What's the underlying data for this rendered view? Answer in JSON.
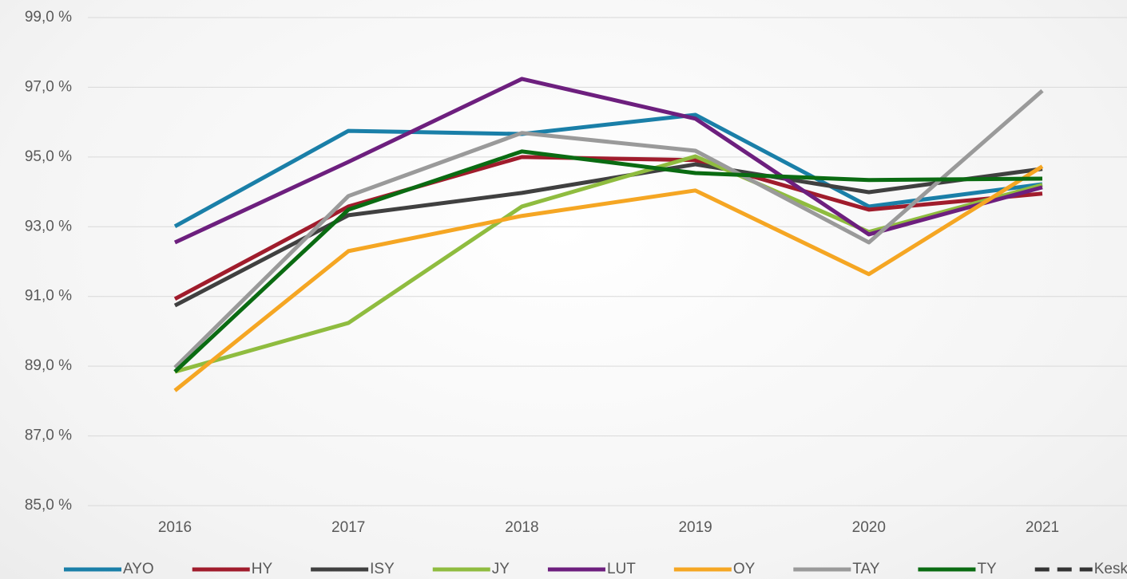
{
  "chart_data": {
    "type": "line",
    "categories": [
      "2016",
      "2017",
      "2018",
      "2019",
      "2020",
      "2021"
    ],
    "ylim": [
      85,
      99
    ],
    "yticks": [
      {
        "value": 85,
        "label": "85,0 %"
      },
      {
        "value": 87,
        "label": "87,0 %"
      },
      {
        "value": 89,
        "label": "89,0 %"
      },
      {
        "value": 91,
        "label": "91,0 %"
      },
      {
        "value": 93,
        "label": "93,0 %"
      },
      {
        "value": 95,
        "label": "95,0 %"
      },
      {
        "value": 97,
        "label": "97,0 %"
      },
      {
        "value": 99,
        "label": "99,0 %"
      }
    ],
    "grid": true,
    "legend": "bottom",
    "series": [
      {
        "name": "AYO",
        "color": "#1a7fa8",
        "values": [
          93.01,
          95.75,
          95.66,
          96.21,
          93.58,
          94.22
        ]
      },
      {
        "name": "HY",
        "color": "#a01c2c",
        "values": [
          90.93,
          93.58,
          95.0,
          94.91,
          93.49,
          93.95
        ]
      },
      {
        "name": "ISY",
        "color": "#404040",
        "values": [
          90.74,
          93.33,
          93.97,
          94.79,
          93.99,
          94.66
        ]
      },
      {
        "name": "JY",
        "color": "#8fbc3f",
        "values": [
          88.84,
          90.24,
          93.58,
          95.02,
          92.85,
          94.2
        ]
      },
      {
        "name": "LUT",
        "color": "#6d1f7e",
        "values": [
          92.55,
          94.86,
          97.24,
          96.1,
          92.78,
          94.13
        ]
      },
      {
        "name": "OY",
        "color": "#f5a623",
        "values": [
          88.3,
          92.3,
          93.31,
          94.04,
          91.64,
          94.73
        ]
      },
      {
        "name": "TAY",
        "color": "#9a9a9a",
        "values": [
          88.96,
          93.88,
          95.69,
          95.18,
          92.55,
          96.9
        ]
      },
      {
        "name": "TY",
        "color": "#0a6b12",
        "values": [
          88.84,
          93.49,
          95.16,
          94.54,
          94.34,
          94.38
        ]
      },
      {
        "name": "Keskiarvo",
        "color": "#333333",
        "dash": true,
        "values": [
          null,
          null,
          null,
          null,
          null,
          null
        ]
      }
    ]
  }
}
